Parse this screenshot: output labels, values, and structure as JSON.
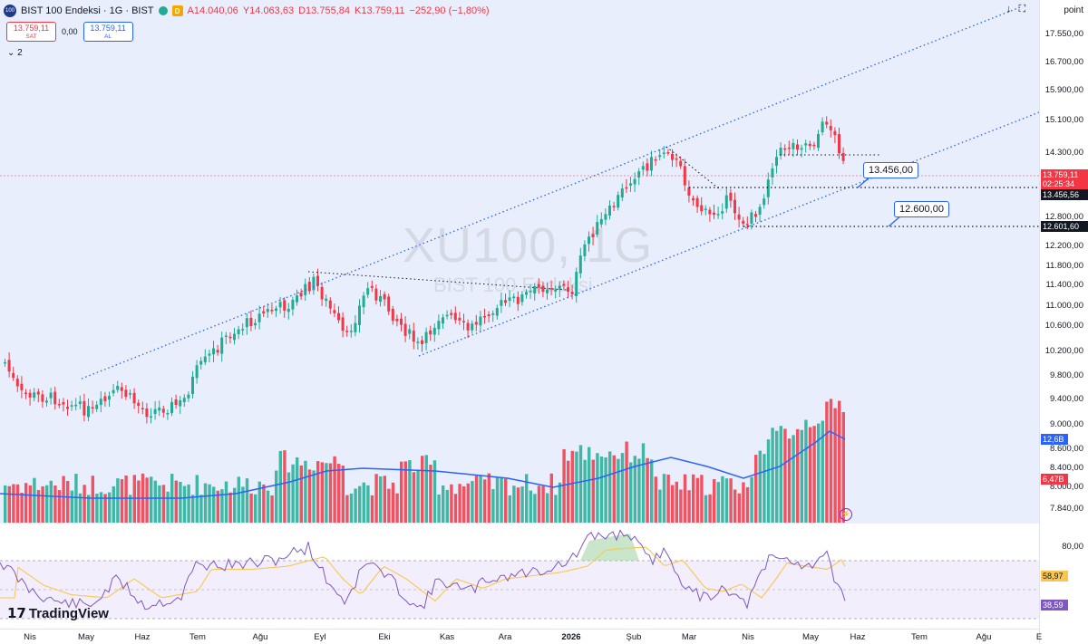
{
  "header": {
    "logo_text": "100",
    "symbol_title": "BIST 100 Endeksi · 1G · BIST",
    "d_badge": "D",
    "open": "A14.040,06",
    "high": "Y14.063,63",
    "low": "D13.755,84",
    "close": "K13.759,11",
    "change": "−252,90 (−1,80%)"
  },
  "trade": {
    "sell_price": "13.759,11",
    "sell_label": "SAT",
    "spread": "0,00",
    "buy_price": "13.759,11",
    "buy_label": "AL"
  },
  "indicator_toggle": "⌄ 2",
  "watermark": {
    "symbol": "XU100, 1G",
    "name": "BIST 100 Endeksi"
  },
  "callouts": {
    "upper": "13.456,00",
    "lower": "12.600,00"
  },
  "price_axis": {
    "unit": "point",
    "ticks": [
      "17.550,00",
      "16.700,00",
      "15.900,00",
      "15.100,00",
      "14.300,00",
      "13.600,00",
      "12.800,00",
      "12.200,00",
      "11.800,00",
      "11.400,00",
      "11.000,00",
      "10.600,00",
      "10.200,00",
      "9.800,00",
      "9.400,00",
      "9.000,00",
      "8.600,00",
      "8.400,00",
      "8.000,00",
      "7.840,00"
    ],
    "current_price": "13.759,11",
    "countdown": "02:25:34",
    "line_13456": "13.456,56",
    "line_12601": "12.601,60",
    "volume_ma": "12,6B",
    "volume_last": "6,47B"
  },
  "rsi_axis": {
    "level_top": "80,00",
    "rsi_ma": "58,97",
    "rsi_value": "38,59"
  },
  "time_axis": [
    "Nis",
    "May",
    "Haz",
    "Tem",
    "Ağu",
    "Eyl",
    "Eki",
    "Kas",
    "Ara",
    "2026",
    "Şub",
    "Mar",
    "Nis",
    "May",
    "Haz",
    "Tem",
    "Ağu",
    "E"
  ],
  "branding": {
    "logo": "TradingView"
  },
  "colors": {
    "up": "#22ab94",
    "down": "#f23645",
    "ma": "#2962ff",
    "rsi": "#7e57c2",
    "rsi_ma": "#f9c74f",
    "channel": "#2962ff"
  }
}
